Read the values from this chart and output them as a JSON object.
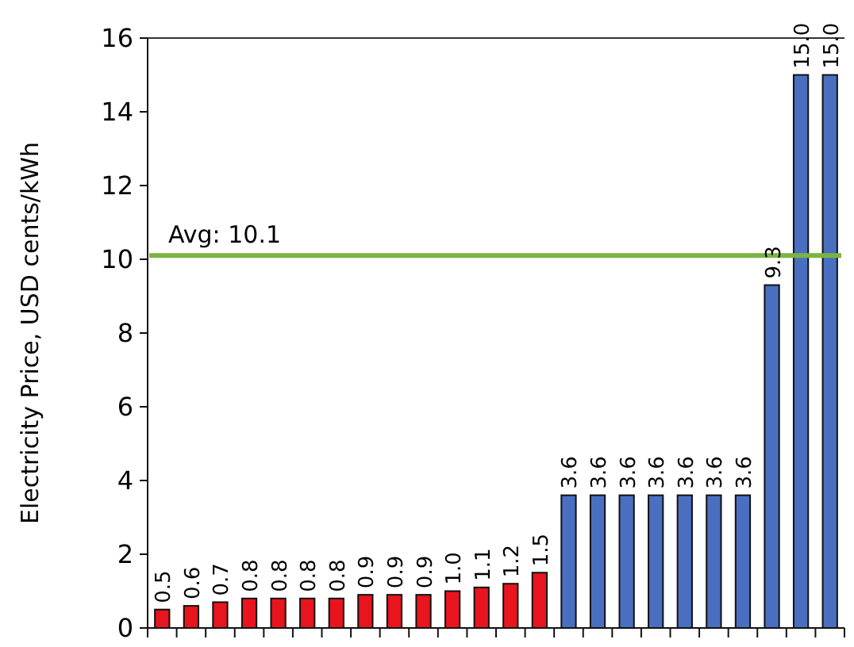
{
  "chart_data": {
    "type": "bar",
    "ylabel": "Electricity Price, USD cents/kWh",
    "categories": [
      null,
      null,
      null,
      null,
      null,
      null,
      null,
      null,
      null,
      null,
      null,
      null,
      null,
      null,
      null,
      null,
      null,
      null,
      null,
      null,
      null,
      null,
      null,
      null
    ],
    "values": [
      0.5,
      0.6,
      0.7,
      0.8,
      0.8,
      0.8,
      0.8,
      0.9,
      0.9,
      0.9,
      1.0,
      1.1,
      1.2,
      1.5,
      3.6,
      3.6,
      3.6,
      3.6,
      3.6,
      3.6,
      3.6,
      9.3,
      15.0,
      15.0
    ],
    "colors": [
      "#e8141e",
      "#e8141e",
      "#e8141e",
      "#e8141e",
      "#e8141e",
      "#e8141e",
      "#e8141e",
      "#e8141e",
      "#e8141e",
      "#e8141e",
      "#e8141e",
      "#e8141e",
      "#e8141e",
      "#e8141e",
      "#4a6fc0",
      "#4a6fc0",
      "#4a6fc0",
      "#4a6fc0",
      "#4a6fc0",
      "#4a6fc0",
      "#4a6fc0",
      "#4a6fc0",
      "#4a6fc0",
      "#4a6fc0"
    ],
    "value_labels": [
      "0.5",
      "0.6",
      "0.7",
      "0.8",
      "0.8",
      "0.8",
      "0.8",
      "0.9",
      "0.9",
      "0.9",
      "1.0",
      "1.1",
      "1.2",
      "1.5",
      "3.6",
      "3.6",
      "3.6",
      "3.6",
      "3.6",
      "3.6",
      "3.6",
      "9.3",
      "15.0",
      "15.0"
    ],
    "ylim": [
      0,
      16
    ],
    "yticks": [
      0,
      2,
      4,
      6,
      8,
      10,
      12,
      14,
      16
    ],
    "ref_lines": [
      {
        "axis": "y",
        "value": 10.1,
        "label": "Avg: 10.1",
        "color": "#7cb342"
      }
    ]
  }
}
